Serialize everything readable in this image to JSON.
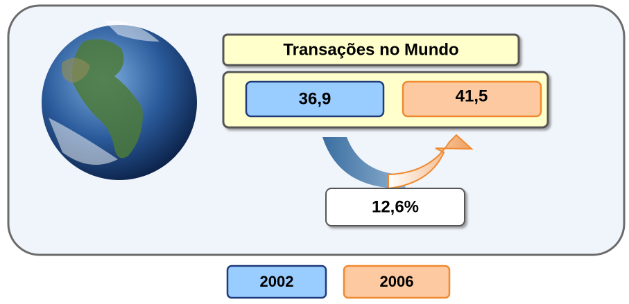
{
  "title": "Transações no Mundo",
  "values": [
    "36,9",
    "41,5"
  ],
  "change": "12,6%",
  "legend": [
    "2002",
    "2006"
  ]
}
